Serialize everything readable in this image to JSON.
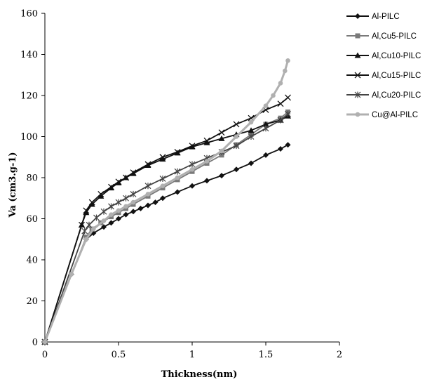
{
  "chart_data": {
    "type": "line",
    "title": "",
    "xlabel": "Thickness(nm)",
    "ylabel": "Va (cm3.g-1)",
    "xlim": [
      0,
      2
    ],
    "ylim": [
      0,
      160
    ],
    "xticks": [
      "0",
      "0.5",
      "1",
      "1.5",
      "2"
    ],
    "yticks": [
      "0",
      "20",
      "40",
      "60",
      "80",
      "100",
      "120",
      "140",
      "160"
    ],
    "grid": false,
    "legend_position": "right",
    "series": [
      {
        "name": "Al-PILC",
        "color": "#111111",
        "marker": "diamond",
        "x": [
          0,
          0.18,
          0.28,
          0.33,
          0.4,
          0.45,
          0.5,
          0.55,
          0.6,
          0.65,
          0.7,
          0.75,
          0.8,
          0.9,
          1.0,
          1.1,
          1.2,
          1.3,
          1.4,
          1.5,
          1.6,
          1.65
        ],
        "y": [
          0,
          33,
          50,
          53,
          56,
          58,
          60,
          62,
          63.5,
          65,
          66.5,
          68,
          70,
          73,
          76,
          78.5,
          81,
          84,
          87,
          91,
          94,
          96
        ]
      },
      {
        "name": "Al,Cu5-PILC",
        "color": "#7a7a7a",
        "marker": "square",
        "x": [
          0,
          0.28,
          0.32,
          0.38,
          0.45,
          0.5,
          0.55,
          0.6,
          0.7,
          0.8,
          0.9,
          1.0,
          1.1,
          1.2,
          1.3,
          1.4,
          1.5,
          1.6,
          1.65
        ],
        "y": [
          0,
          51,
          55,
          58,
          61,
          63,
          65,
          67,
          71,
          75,
          79,
          83,
          87,
          91,
          96,
          101,
          106,
          109,
          112
        ]
      },
      {
        "name": "Al,Cu10-PILC",
        "color": "#111111",
        "marker": "triangle",
        "x": [
          0,
          0.25,
          0.28,
          0.32,
          0.38,
          0.45,
          0.5,
          0.55,
          0.6,
          0.7,
          0.8,
          0.9,
          1.0,
          1.1,
          1.2,
          1.3,
          1.4,
          1.5,
          1.6,
          1.65
        ],
        "y": [
          0,
          57,
          63,
          67,
          71,
          75,
          77.5,
          80,
          82,
          86,
          89,
          92,
          95,
          97,
          99,
          101,
          103,
          106,
          108,
          110
        ]
      },
      {
        "name": "Al,Cu15-PILC",
        "color": "#111111",
        "marker": "x",
        "x": [
          0,
          0.25,
          0.28,
          0.32,
          0.38,
          0.45,
          0.5,
          0.55,
          0.6,
          0.7,
          0.8,
          0.9,
          1.0,
          1.1,
          1.2,
          1.3,
          1.4,
          1.5,
          1.6,
          1.65
        ],
        "y": [
          0,
          57,
          64,
          68,
          72,
          75.5,
          78,
          80,
          82.5,
          86.5,
          90,
          92.5,
          95.5,
          98,
          102,
          106,
          109,
          113,
          116,
          119
        ]
      },
      {
        "name": "Al,Cu20-PILC",
        "color": "#444444",
        "marker": "star",
        "x": [
          0,
          0.27,
          0.3,
          0.35,
          0.4,
          0.45,
          0.5,
          0.55,
          0.6,
          0.7,
          0.8,
          0.9,
          1.0,
          1.1,
          1.2,
          1.3,
          1.4,
          1.5,
          1.6,
          1.65
        ],
        "y": [
          0,
          54,
          57,
          60.5,
          63.5,
          66,
          68,
          70,
          72,
          76,
          79.5,
          83,
          86.5,
          89.5,
          92.5,
          95.5,
          100,
          104,
          108,
          111
        ]
      },
      {
        "name": "Cu@Al-PILC",
        "color": "#b0b0b0",
        "marker": "dot",
        "x": [
          0,
          0.18,
          0.28,
          0.33,
          0.4,
          0.45,
          0.5,
          0.55,
          0.6,
          0.7,
          0.8,
          0.9,
          1.0,
          1.1,
          1.2,
          1.3,
          1.4,
          1.5,
          1.55,
          1.6,
          1.63,
          1.65
        ],
        "y": [
          0,
          33,
          50,
          55,
          59,
          62,
          64,
          66,
          68,
          72,
          76,
          80,
          84,
          88,
          93,
          100,
          107,
          115,
          120,
          126,
          132,
          137
        ]
      }
    ]
  }
}
